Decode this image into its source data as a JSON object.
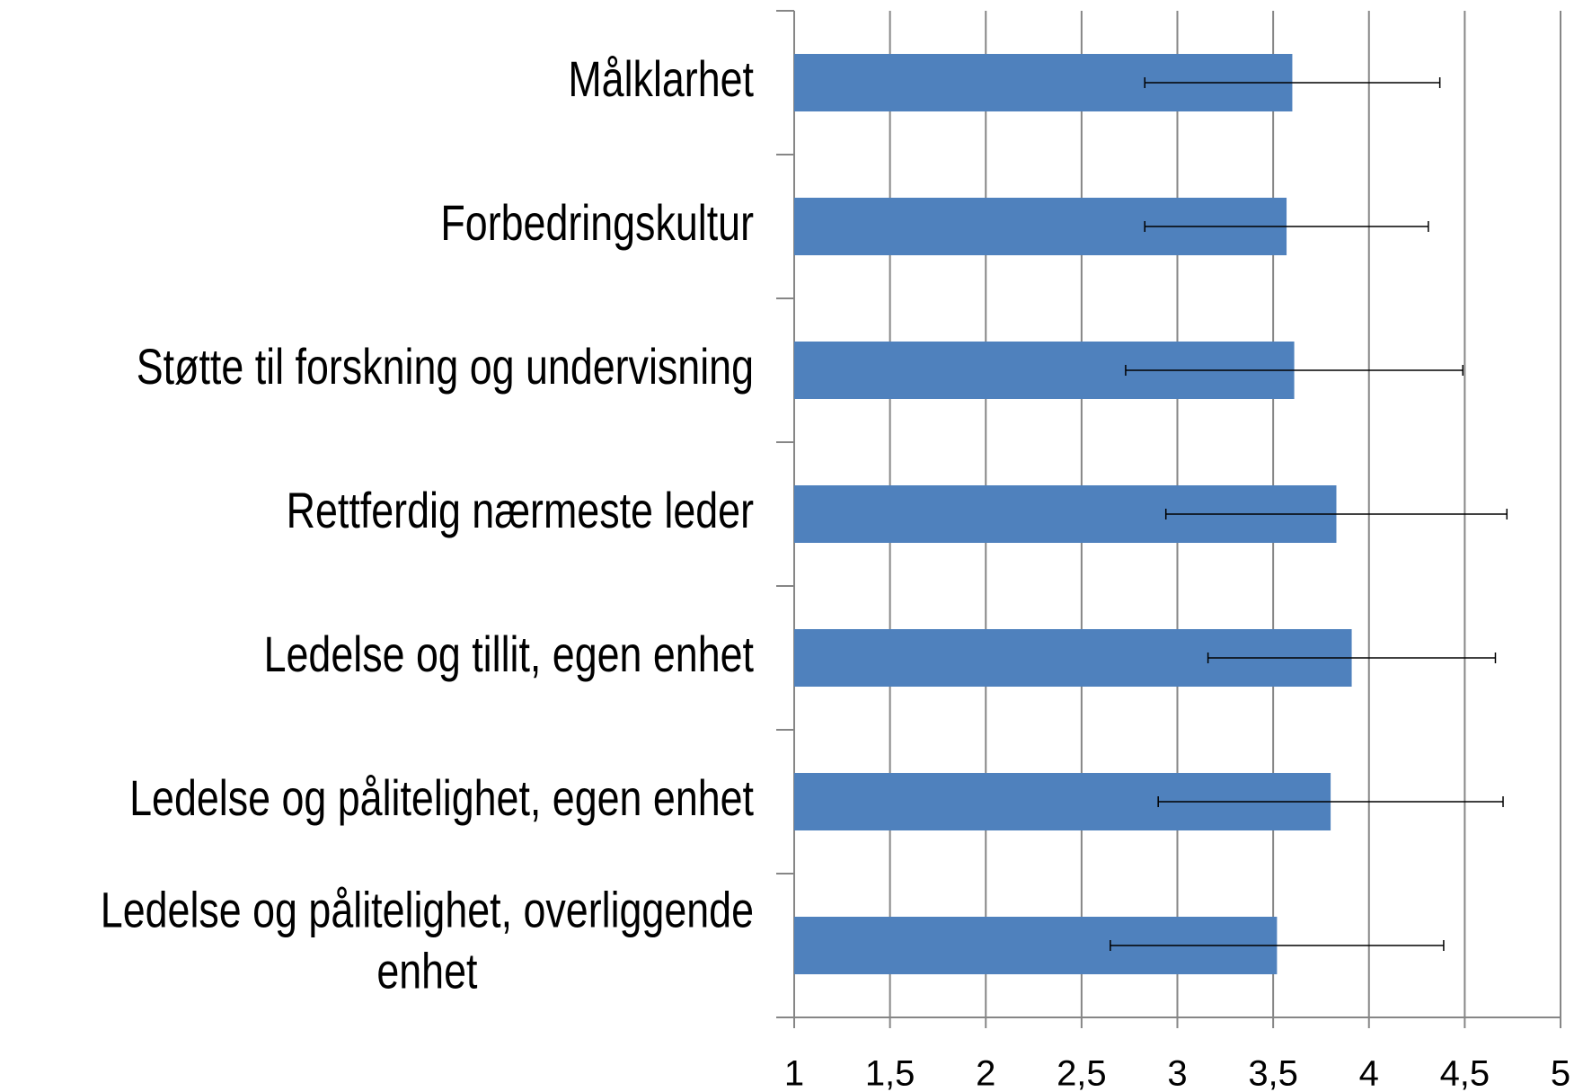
{
  "chart_data": {
    "type": "bar",
    "orientation": "horizontal",
    "categories": [
      "Målklarhet",
      "Forbedringskultur",
      "Støtte til forskning og undervisning",
      "Rettferdig nærmeste leder",
      "Ledelse og tillit, egen enhet",
      "Ledelse og pålitelighet, egen enhet",
      "Ledelse og pålitelighet, overliggende enhet"
    ],
    "values": [
      3.6,
      3.57,
      3.61,
      3.83,
      3.91,
      3.8,
      3.52
    ],
    "errors": [
      0.77,
      0.74,
      0.88,
      0.89,
      0.75,
      0.9,
      0.87
    ],
    "color": "#4f81bd",
    "xlim": [
      1,
      5
    ],
    "xticks": [
      1,
      {
        "value": 1.5,
        "label": "1,5"
      },
      2,
      {
        "value": 2.5,
        "label": "2,5"
      },
      3,
      {
        "value": 3.5,
        "label": "3,5"
      },
      4,
      {
        "value": 4.5,
        "label": "4,5"
      },
      5
    ],
    "grid": true
  }
}
